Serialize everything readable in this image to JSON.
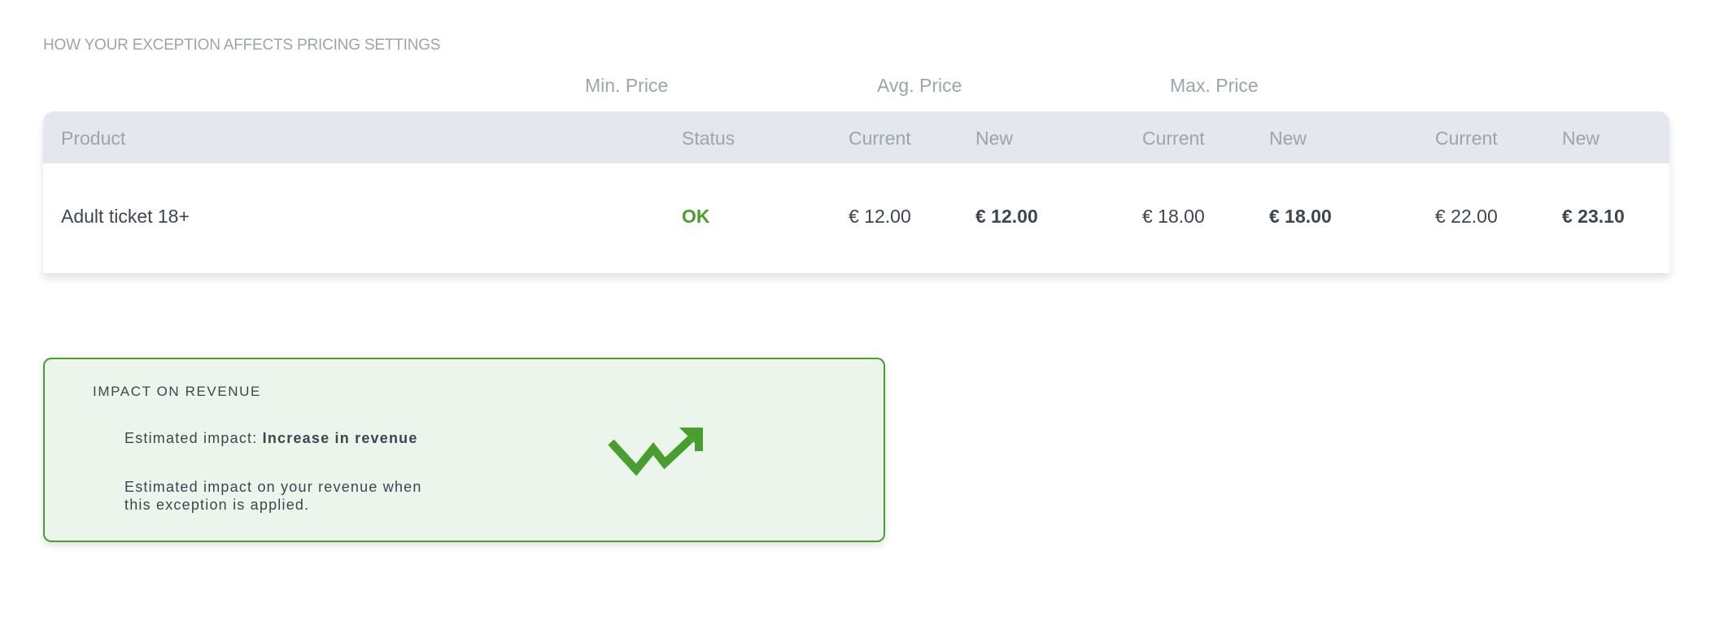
{
  "section_title": "HOW YOUR EXCEPTION AFFECTS PRICING SETTINGS",
  "groups": [
    "Min. Price",
    "Avg. Price",
    "Max. Price"
  ],
  "columns": {
    "product": "Product",
    "status": "Status",
    "current": "Current",
    "new": "New"
  },
  "rows": [
    {
      "product": "Adult ticket 18+",
      "status": "OK",
      "min_current": "€ 12.00",
      "min_new": "€ 12.00",
      "avg_current": "€ 18.00",
      "avg_new": "€ 18.00",
      "max_current": "€ 22.00",
      "max_new": "€ 23.10"
    }
  ],
  "impact": {
    "title": "IMPACT ON REVENUE",
    "estimate_label": "Estimated impact: ",
    "estimate_value": "Increase in revenue",
    "description": "Estimated impact on your revenue when this exception is applied.",
    "icon": "trending-up-icon"
  },
  "colors": {
    "success": "#4a9e2f",
    "impact_bg": "#ecf5eb",
    "header_bg": "#e4e8ee",
    "text": "#3c4650",
    "muted": "#9ba6a9"
  }
}
